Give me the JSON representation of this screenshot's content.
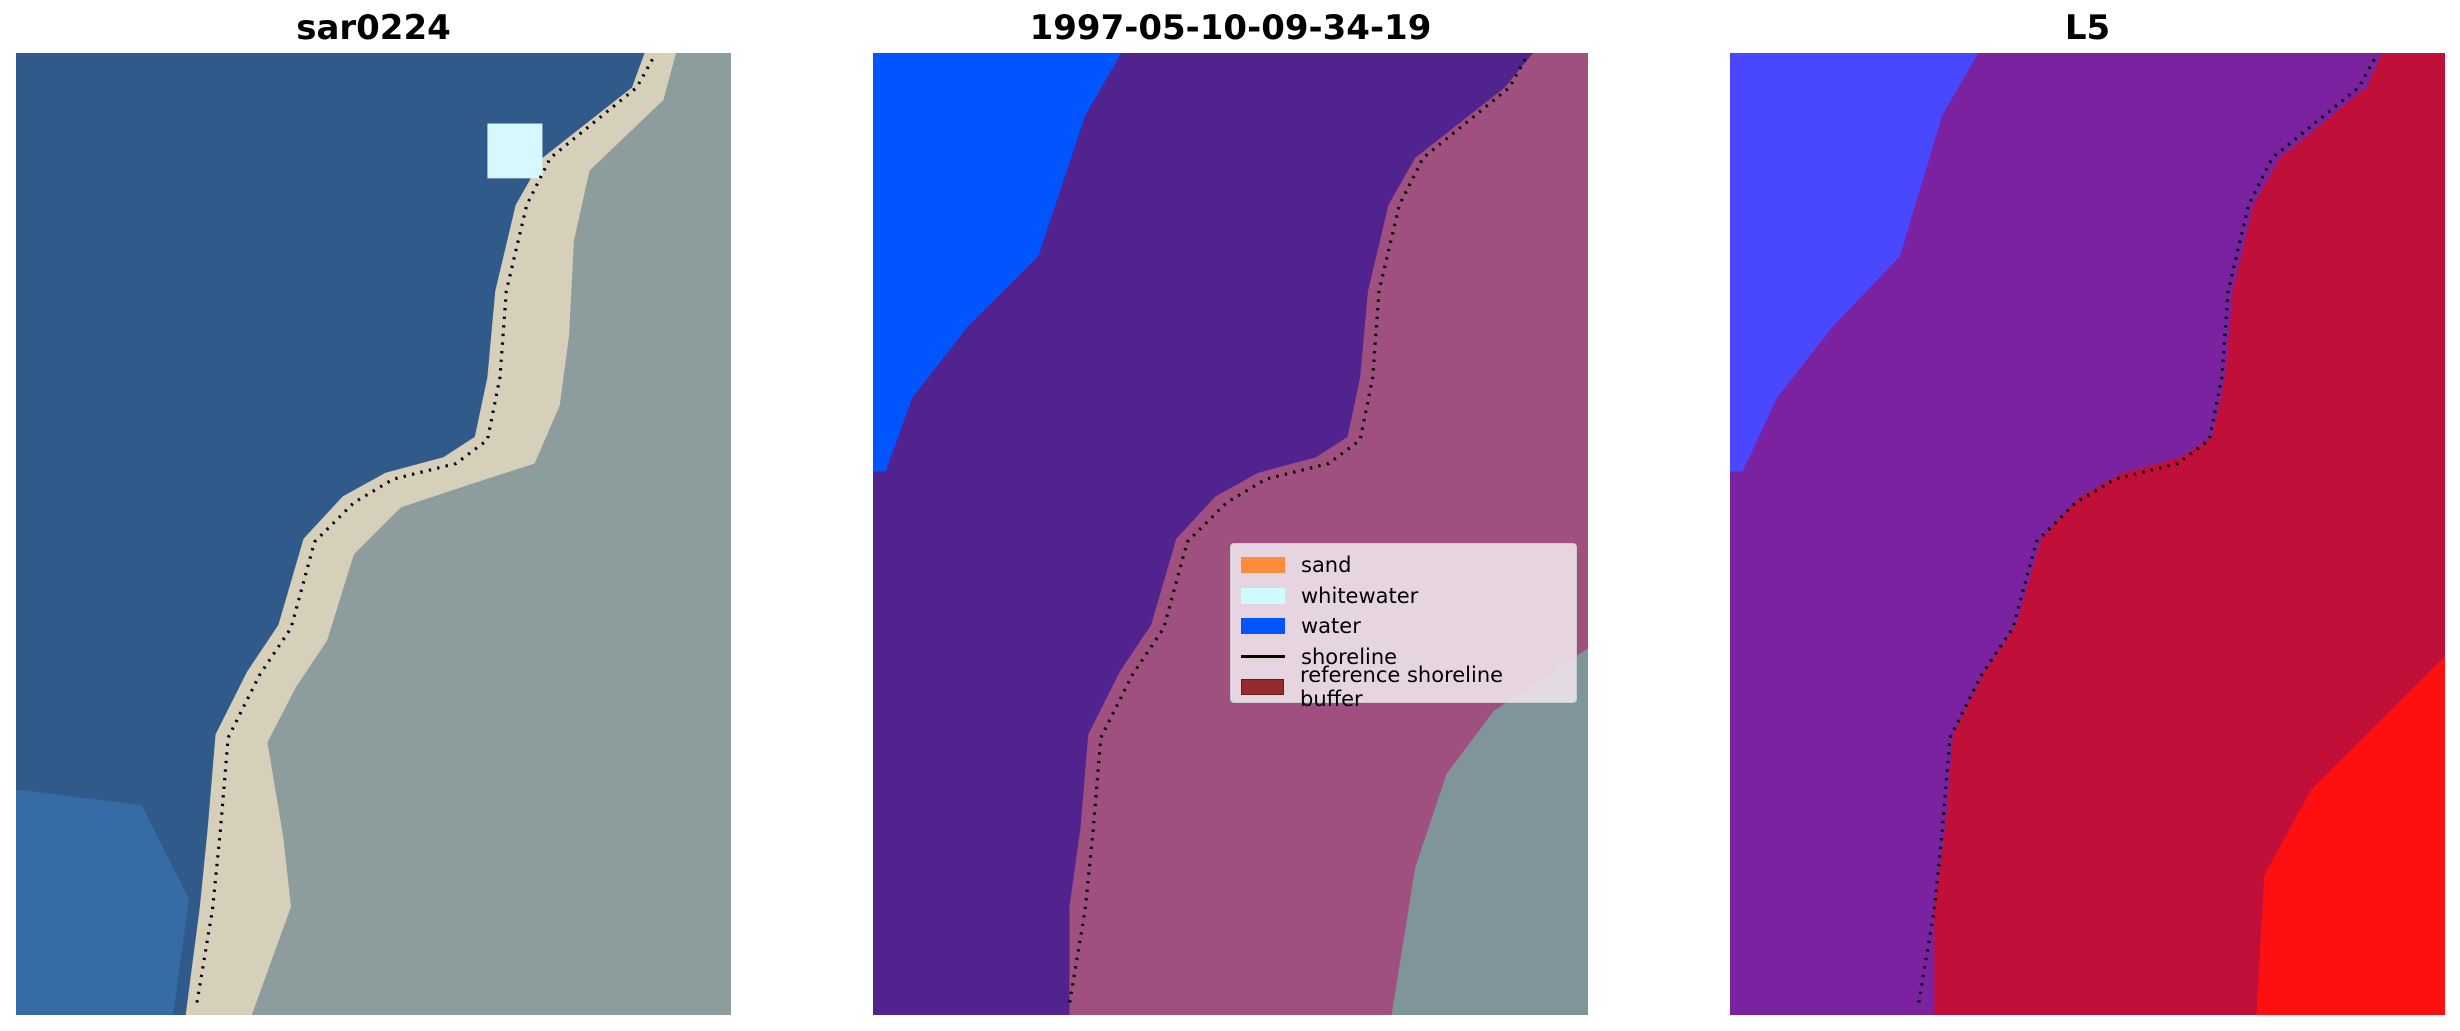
{
  "chart_data": [
    {
      "type": "image",
      "title": "sar0224",
      "colors": {
        "water": "#2f5a8a",
        "sand": "#e8dcc0",
        "land": "#8d9c9c",
        "shoreline": "#000000"
      }
    },
    {
      "type": "image",
      "title": "1997-05-10-09-34-19",
      "colors": {
        "water": "#0055ff",
        "sea": "#51238f",
        "buffer": "#a0507f",
        "land": "#7f959a"
      },
      "legend": {
        "placement": "center-right",
        "entries": [
          {
            "label": "sand",
            "color": "#ff8c3a",
            "kind": "patch"
          },
          {
            "label": "whitewater",
            "color": "#ccfcff",
            "kind": "patch"
          },
          {
            "label": "water",
            "color": "#0055ff",
            "kind": "patch"
          },
          {
            "label": "shoreline",
            "color": "#000000",
            "kind": "line"
          },
          {
            "label": "reference shoreline buffer",
            "color": "#962a2e",
            "kind": "patch"
          }
        ]
      }
    },
    {
      "type": "image",
      "title": "L5",
      "colors": {
        "water": "#4a48ff",
        "sea": "#7a22a0",
        "land": "#c0103a",
        "bright": "#ff1010"
      }
    }
  ]
}
